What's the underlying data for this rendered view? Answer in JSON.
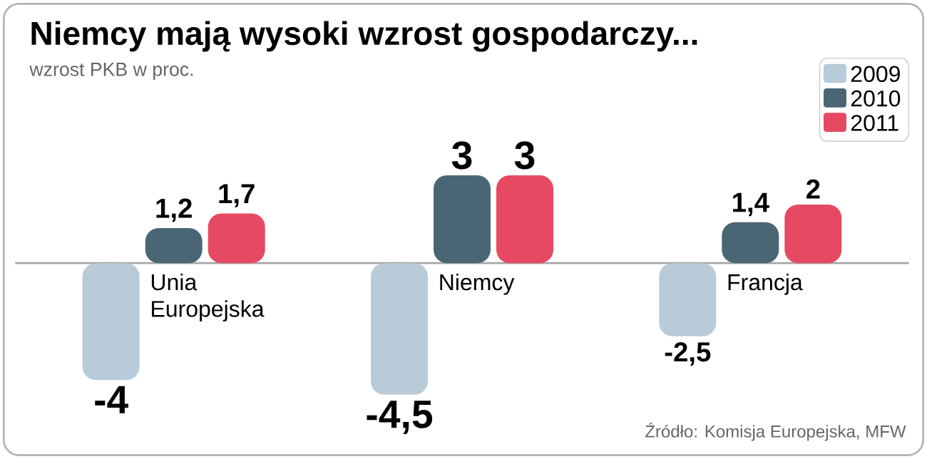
{
  "chart_data": {
    "type": "bar",
    "title": "Niemcy mają wysoki wzrost gospodarczy...",
    "subtitle": "wzrost PKB w proc.",
    "categories": [
      "Unia Europejska",
      "Niemcy",
      "Francja"
    ],
    "series": [
      {
        "name": "2009",
        "color": "#b8cbd8",
        "values": [
          -4,
          -4.5,
          -2.5
        ],
        "value_labels": [
          "-4",
          "-4,5",
          "-2,5"
        ]
      },
      {
        "name": "2010",
        "color": "#4a6675",
        "values": [
          1.2,
          3,
          1.4
        ],
        "value_labels": [
          "1,2",
          "3",
          "1,4"
        ]
      },
      {
        "name": "2011",
        "color": "#e64a62",
        "values": [
          1.7,
          3,
          2
        ],
        "value_labels": [
          "1,7",
          "3",
          "2"
        ]
      }
    ],
    "legend": "top right",
    "annotations": [
      "Źródło: Komisja Europejska, MFW"
    ]
  }
}
